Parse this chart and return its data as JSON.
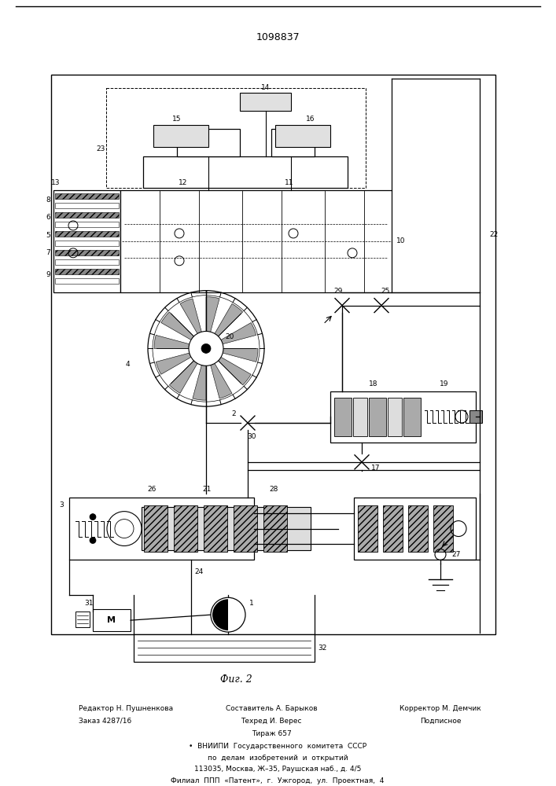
{
  "title": "1098837",
  "fig_caption": "Фиг. 2",
  "bg_color": "#ffffff",
  "line_color": "#000000",
  "footnote": [
    [
      "Редактор Н. Пушненкова",
      "Составитель А. Барыков",
      "Корректор М. Демчик"
    ],
    [
      "Заказ 4287/16",
      "Тираж 657",
      "Подписное"
    ],
    [
      "Техред И. Верес",
      "",
      ""
    ]
  ]
}
